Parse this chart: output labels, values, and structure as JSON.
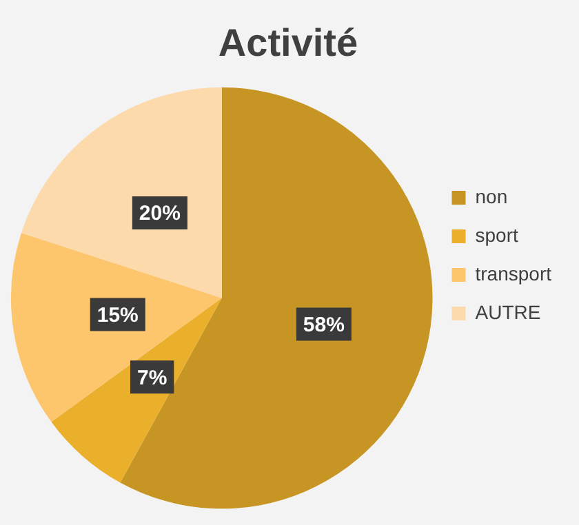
{
  "chart_data": {
    "type": "pie",
    "title": "Activité",
    "categories": [
      "non",
      "sport",
      "transport",
      "AUTRE"
    ],
    "values": [
      58,
      7,
      15,
      20
    ],
    "colors": [
      "#c79524",
      "#ebb02b",
      "#fdc56c",
      "#fddaab"
    ],
    "value_labels": [
      "58%",
      "7%",
      "15%",
      "20%"
    ],
    "legend": "right"
  }
}
